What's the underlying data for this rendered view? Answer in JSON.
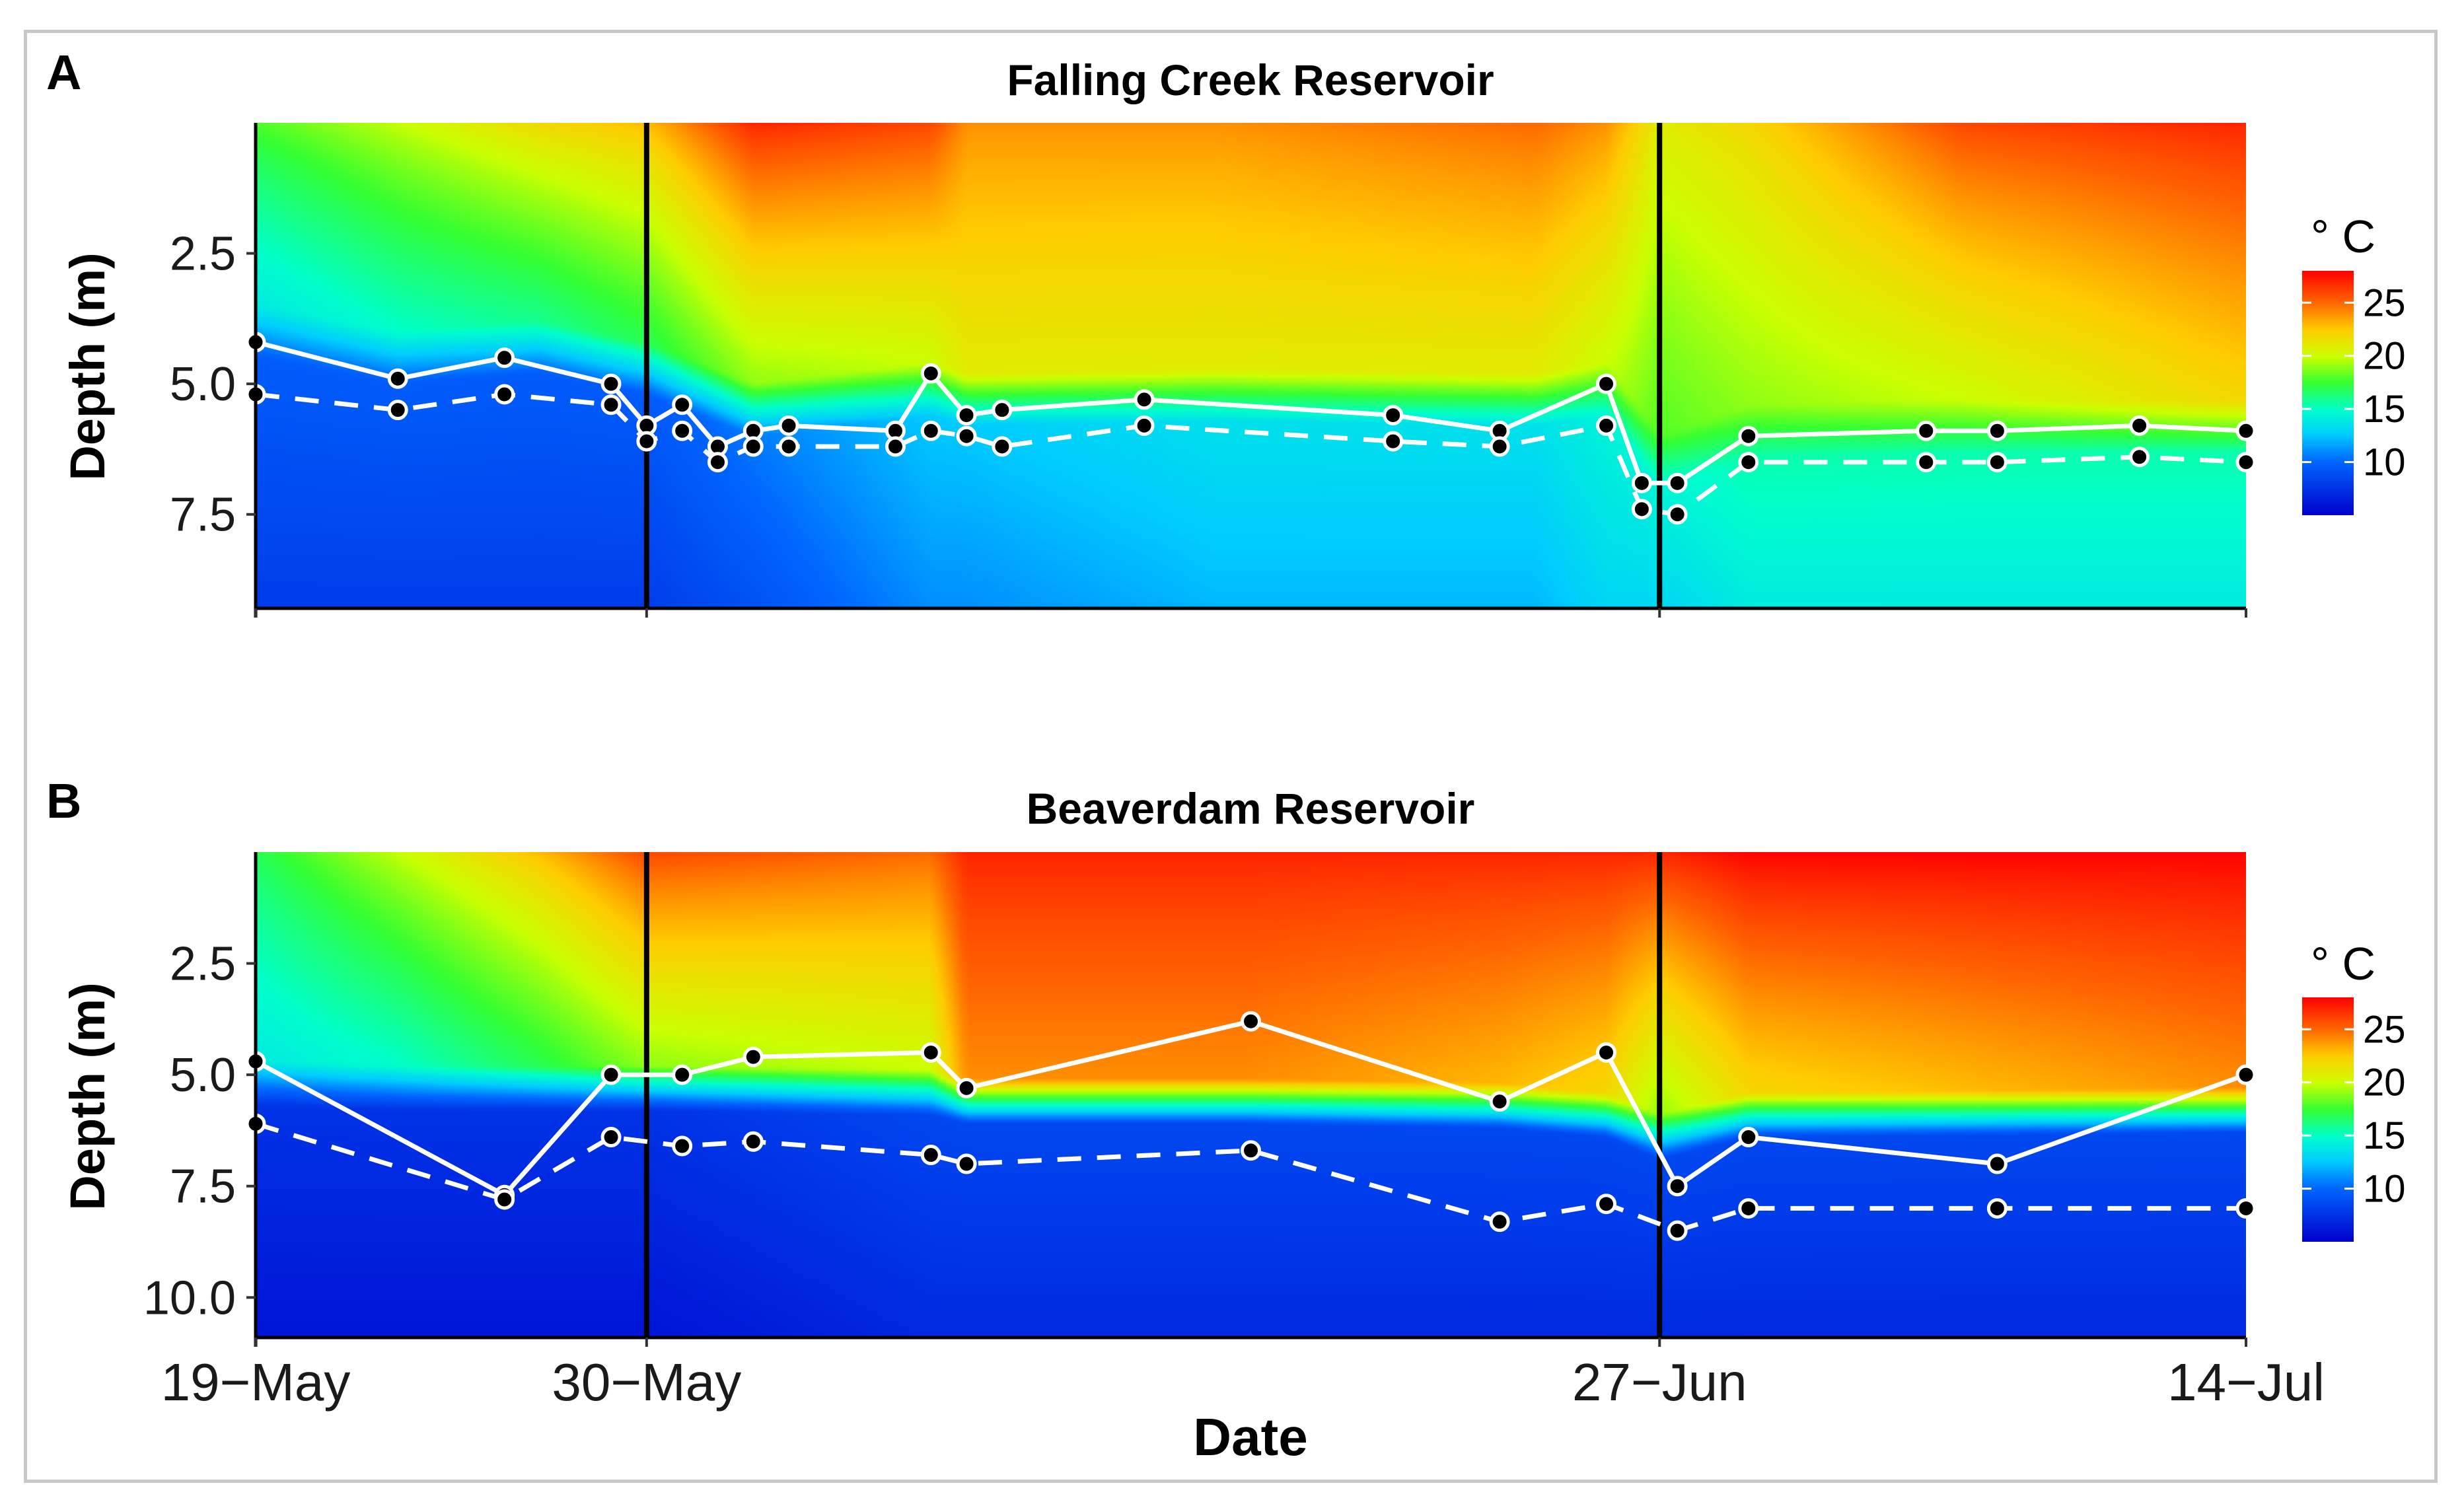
{
  "chart_data": [
    {
      "type": "heatmap",
      "panel_label": "A",
      "title": "Falling Creek Reservoir",
      "xlabel": "",
      "ylabel": "Depth (m)",
      "y_ticks": [
        2.5,
        5.0,
        7.5
      ],
      "y_tick_labels": [
        "2.5",
        "5.0",
        "7.5"
      ],
      "ylim": [
        0,
        9.3
      ],
      "x_range_days": [
        0,
        56
      ],
      "x_ticks": [
        0,
        11,
        39.5,
        56
      ],
      "x_tick_labels": [
        "19−May",
        "30−May",
        "27−Jun",
        "14−Jul"
      ],
      "vlines": [
        11,
        39.5
      ],
      "legend": {
        "title": "° C",
        "ticks": [
          10,
          15,
          20,
          25
        ],
        "range": [
          5,
          28
        ],
        "position": "right"
      },
      "solid_line": {
        "name": "solid",
        "x": [
          0,
          4,
          7,
          10,
          11,
          12,
          13,
          14,
          15,
          18,
          19,
          20,
          21,
          25,
          32,
          35,
          38,
          39,
          40,
          42,
          47,
          49,
          53,
          56
        ],
        "y": [
          4.2,
          4.9,
          4.5,
          5.0,
          5.8,
          5.4,
          6.2,
          5.9,
          5.8,
          5.9,
          4.8,
          5.6,
          5.5,
          5.3,
          5.6,
          5.9,
          5.0,
          6.9,
          6.9,
          6.0,
          5.9,
          5.9,
          5.8,
          5.9
        ]
      },
      "dashed_line": {
        "name": "dashed",
        "x": [
          0,
          4,
          7,
          10,
          11,
          12,
          13,
          14,
          15,
          18,
          19,
          20,
          21,
          25,
          32,
          35,
          38,
          39,
          40,
          42,
          47,
          49,
          53,
          56
        ],
        "y": [
          5.2,
          5.5,
          5.2,
          5.4,
          6.1,
          5.9,
          6.5,
          6.2,
          6.2,
          6.2,
          5.9,
          6.0,
          6.2,
          5.8,
          6.1,
          6.2,
          5.8,
          7.4,
          7.5,
          6.5,
          6.5,
          6.5,
          6.4,
          6.5
        ]
      },
      "color_field": [
        {
          "x": [
            0,
            4,
            8,
            11,
            14,
            19,
            20,
            27,
            36,
            38,
            39.5,
            42,
            48,
            56
          ],
          "surf": [
            18,
            20,
            22,
            23,
            27,
            26,
            24,
            24,
            25,
            24,
            21,
            22,
            26,
            27
          ],
          "mid": [
            14,
            15,
            16,
            17,
            19,
            20,
            21,
            21,
            21,
            20,
            18,
            19,
            20,
            22
          ],
          "thermo": [
            4.1,
            4.6,
            4.4,
            4.8,
            5.6,
            5.2,
            5.4,
            5.3,
            5.4,
            5.2,
            6.6,
            6.0,
            5.9,
            5.9
          ],
          "deep": [
            8,
            8,
            8,
            8,
            9,
            11,
            11,
            12,
            12,
            13,
            13,
            14,
            14,
            14
          ]
        }
      ]
    },
    {
      "type": "heatmap",
      "panel_label": "B",
      "title": "Beaverdam Reservoir",
      "xlabel": "Date",
      "ylabel": "Depth (m)",
      "y_ticks": [
        2.5,
        5.0,
        7.5,
        10.0
      ],
      "y_tick_labels": [
        "2.5",
        "5.0",
        "7.5",
        "10.0"
      ],
      "ylim": [
        0,
        10.9
      ],
      "x_range_days": [
        0,
        56
      ],
      "x_ticks": [
        0,
        11,
        39.5,
        56
      ],
      "x_tick_labels": [
        "19−May",
        "30−May",
        "27−Jun",
        "14−Jul"
      ],
      "vlines": [
        11,
        39.5
      ],
      "legend": {
        "title": "° C",
        "ticks": [
          10,
          15,
          20,
          25
        ],
        "range": [
          5,
          28
        ],
        "position": "right"
      },
      "solid_line": {
        "name": "solid",
        "x": [
          0,
          7,
          10,
          12,
          14,
          19,
          20,
          28,
          35,
          38,
          40,
          42,
          49,
          56
        ],
        "y": [
          4.7,
          7.7,
          5.0,
          5.0,
          4.6,
          4.5,
          5.3,
          3.8,
          5.6,
          4.5,
          7.5,
          6.4,
          7.0,
          5.0
        ]
      },
      "dashed_line": {
        "name": "dashed",
        "x": [
          0,
          7,
          10,
          12,
          14,
          19,
          20,
          28,
          35,
          38,
          40,
          42,
          49,
          56
        ],
        "y": [
          6.1,
          7.8,
          6.4,
          6.6,
          6.5,
          6.8,
          7.0,
          6.7,
          8.3,
          7.9,
          8.5,
          8.0,
          8.0,
          8.0
        ]
      },
      "color_field": [
        {
          "x": [
            0,
            4,
            8,
            11,
            19,
            20,
            28,
            35,
            38,
            39.5,
            42,
            56
          ],
          "surf": [
            17,
            20,
            23,
            26,
            25,
            27,
            27,
            27,
            27,
            27,
            28,
            28
          ],
          "mid": [
            14,
            15,
            17,
            19,
            20,
            24,
            24,
            23,
            22,
            19,
            22,
            24
          ],
          "thermo": [
            5.3,
            5.4,
            5.4,
            5.4,
            5.5,
            5.7,
            5.7,
            5.8,
            6.0,
            6.5,
            6.0,
            5.9
          ],
          "deep": [
            6,
            6,
            6,
            6,
            7,
            7,
            7,
            7,
            7,
            7,
            7,
            7
          ]
        }
      ]
    }
  ]
}
